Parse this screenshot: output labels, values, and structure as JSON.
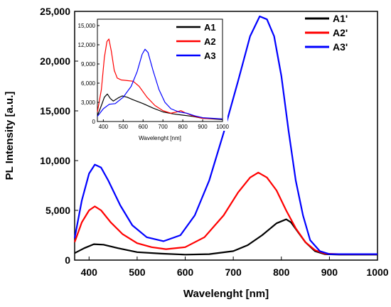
{
  "chart_data": [
    {
      "type": "line",
      "xlabel": "Wavelenght [nm]",
      "ylabel": "PL Intensity [a.u.]",
      "xlim": [
        370,
        1000
      ],
      "ylim": [
        0,
        25000
      ],
      "xticks": [
        400,
        500,
        600,
        700,
        800,
        900,
        1000
      ],
      "yticks": [
        0,
        5000,
        10000,
        15000,
        20000,
        25000
      ],
      "xtick_labels": [
        "400",
        "500",
        "600",
        "700",
        "800",
        "900",
        "1000"
      ],
      "ytick_labels": [
        "0",
        "5,000",
        "10,000",
        "15,000",
        "20,000",
        "25,000"
      ],
      "legend_position": "top-right",
      "grid": false,
      "series": [
        {
          "name": "A1'",
          "color": "#000000",
          "points": [
            [
              370,
              700
            ],
            [
              390,
              1200
            ],
            [
              410,
              1600
            ],
            [
              430,
              1550
            ],
            [
              460,
              1200
            ],
            [
              500,
              800
            ],
            [
              550,
              650
            ],
            [
              600,
              550
            ],
            [
              650,
              600
            ],
            [
              700,
              900
            ],
            [
              730,
              1500
            ],
            [
              760,
              2500
            ],
            [
              790,
              3700
            ],
            [
              810,
              4100
            ],
            [
              820,
              3800
            ],
            [
              835,
              2800
            ],
            [
              850,
              1800
            ],
            [
              870,
              900
            ],
            [
              890,
              600
            ],
            [
              920,
              550
            ],
            [
              1000,
              550
            ]
          ]
        },
        {
          "name": "A2'",
          "color": "#ff0000",
          "points": [
            [
              370,
              1800
            ],
            [
              385,
              3800
            ],
            [
              400,
              5000
            ],
            [
              412,
              5400
            ],
            [
              425,
              5000
            ],
            [
              445,
              3800
            ],
            [
              470,
              2600
            ],
            [
              500,
              1700
            ],
            [
              530,
              1300
            ],
            [
              560,
              1100
            ],
            [
              600,
              1300
            ],
            [
              640,
              2300
            ],
            [
              680,
              4500
            ],
            [
              710,
              6800
            ],
            [
              735,
              8300
            ],
            [
              752,
              8800
            ],
            [
              770,
              8300
            ],
            [
              790,
              7000
            ],
            [
              810,
              5000
            ],
            [
              830,
              3200
            ],
            [
              850,
              1800
            ],
            [
              870,
              1000
            ],
            [
              890,
              650
            ],
            [
              920,
              600
            ],
            [
              1000,
              600
            ]
          ]
        },
        {
          "name": "A3'",
          "color": "#0000ff",
          "points": [
            [
              370,
              2200
            ],
            [
              385,
              6000
            ],
            [
              400,
              8700
            ],
            [
              412,
              9600
            ],
            [
              425,
              9300
            ],
            [
              440,
              8000
            ],
            [
              465,
              5500
            ],
            [
              490,
              3500
            ],
            [
              520,
              2300
            ],
            [
              555,
              1900
            ],
            [
              590,
              2500
            ],
            [
              620,
              4500
            ],
            [
              650,
              8000
            ],
            [
              680,
              12800
            ],
            [
              710,
              18000
            ],
            [
              735,
              22500
            ],
            [
              755,
              24500
            ],
            [
              770,
              24200
            ],
            [
              785,
              22500
            ],
            [
              800,
              18500
            ],
            [
              815,
              13000
            ],
            [
              830,
              8000
            ],
            [
              845,
              4500
            ],
            [
              860,
              2000
            ],
            [
              880,
              900
            ],
            [
              900,
              600
            ],
            [
              930,
              600
            ],
            [
              1000,
              600
            ]
          ]
        }
      ]
    },
    {
      "type": "line",
      "xlabel": "Wavelenght [nm]",
      "ylabel": "",
      "xlim": [
        370,
        1000
      ],
      "ylim": [
        0,
        16000
      ],
      "xticks": [
        400,
        500,
        600,
        700,
        800,
        900,
        1000
      ],
      "yticks": [
        0,
        3000,
        6000,
        9000,
        12000,
        15000
      ],
      "xtick_labels": [
        "400",
        "500",
        "600",
        "700",
        "800",
        "900",
        "1000"
      ],
      "ytick_labels": [
        "0",
        "3,000",
        "6,000",
        "9,000",
        "12,000",
        "15,000"
      ],
      "legend_position": "top-right",
      "grid": false,
      "series": [
        {
          "name": "A1",
          "color": "#000000",
          "points": [
            [
              370,
              900
            ],
            [
              390,
              2500
            ],
            [
              405,
              3800
            ],
            [
              420,
              4300
            ],
            [
              435,
              3600
            ],
            [
              450,
              3200
            ],
            [
              475,
              3700
            ],
            [
              495,
              4000
            ],
            [
              520,
              3800
            ],
            [
              550,
              3400
            ],
            [
              600,
              2800
            ],
            [
              650,
              2100
            ],
            [
              700,
              1500
            ],
            [
              750,
              1200
            ],
            [
              800,
              1000
            ],
            [
              850,
              800
            ],
            [
              900,
              500
            ],
            [
              1000,
              300
            ]
          ]
        },
        {
          "name": "A2",
          "color": "#ff0000",
          "points": [
            [
              370,
              1500
            ],
            [
              390,
              5000
            ],
            [
              405,
              10000
            ],
            [
              418,
              12500
            ],
            [
              428,
              12900
            ],
            [
              440,
              11000
            ],
            [
              455,
              8000
            ],
            [
              470,
              6800
            ],
            [
              490,
              6500
            ],
            [
              520,
              6400
            ],
            [
              550,
              6300
            ],
            [
              580,
              5500
            ],
            [
              620,
              3800
            ],
            [
              660,
              2500
            ],
            [
              700,
              1700
            ],
            [
              740,
              1300
            ],
            [
              770,
              1500
            ],
            [
              790,
              1700
            ],
            [
              810,
              1400
            ],
            [
              850,
              900
            ],
            [
              900,
              500
            ],
            [
              1000,
              400
            ]
          ]
        },
        {
          "name": "A3",
          "color": "#0000ff",
          "points": [
            [
              370,
              800
            ],
            [
              400,
              2000
            ],
            [
              430,
              2700
            ],
            [
              460,
              2800
            ],
            [
              500,
              3800
            ],
            [
              540,
              5500
            ],
            [
              570,
              7800
            ],
            [
              595,
              10500
            ],
            [
              610,
              11300
            ],
            [
              625,
              10800
            ],
            [
              650,
              8000
            ],
            [
              680,
              5000
            ],
            [
              710,
              3000
            ],
            [
              740,
              2000
            ],
            [
              780,
              1500
            ],
            [
              820,
              1300
            ],
            [
              860,
              900
            ],
            [
              900,
              600
            ],
            [
              950,
              500
            ],
            [
              1000,
              400
            ]
          ]
        }
      ]
    }
  ]
}
